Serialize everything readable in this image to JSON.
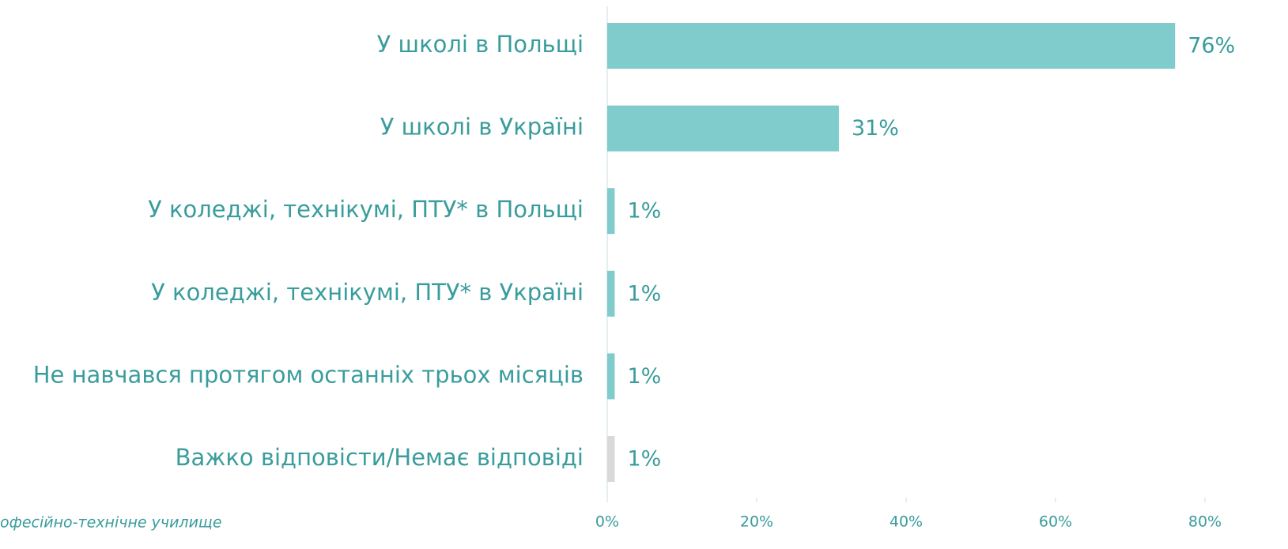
{
  "chart_data": {
    "type": "hbar",
    "categories": [
      "У школі в Польщі",
      "У школі в Україні",
      "У коледжі, технікумі, ПТУ* в Польщі",
      "У коледжі, технікумі, ПТУ* в Україні",
      "Не навчався протягом останніх трьох місяців",
      "Важко відповісти/Немає відповіді"
    ],
    "values": [
      76,
      31,
      1,
      1,
      1,
      1
    ],
    "value_labels": [
      "76%",
      "31%",
      "1%",
      "1%",
      "1%",
      "1%"
    ],
    "colors": [
      "#80cccc",
      "#80cccc",
      "#80cccc",
      "#80cccc",
      "#80cccc",
      "#d9d9d9"
    ],
    "xlim": [
      0,
      80
    ],
    "xticks": [
      {
        "value": 0,
        "label": "0%"
      },
      {
        "value": 20,
        "label": "20%"
      },
      {
        "value": 40,
        "label": "40%"
      },
      {
        "value": 60,
        "label": "60%"
      },
      {
        "value": 80,
        "label": "80%"
      }
    ],
    "annotation": "офесійно-технічне училище"
  }
}
